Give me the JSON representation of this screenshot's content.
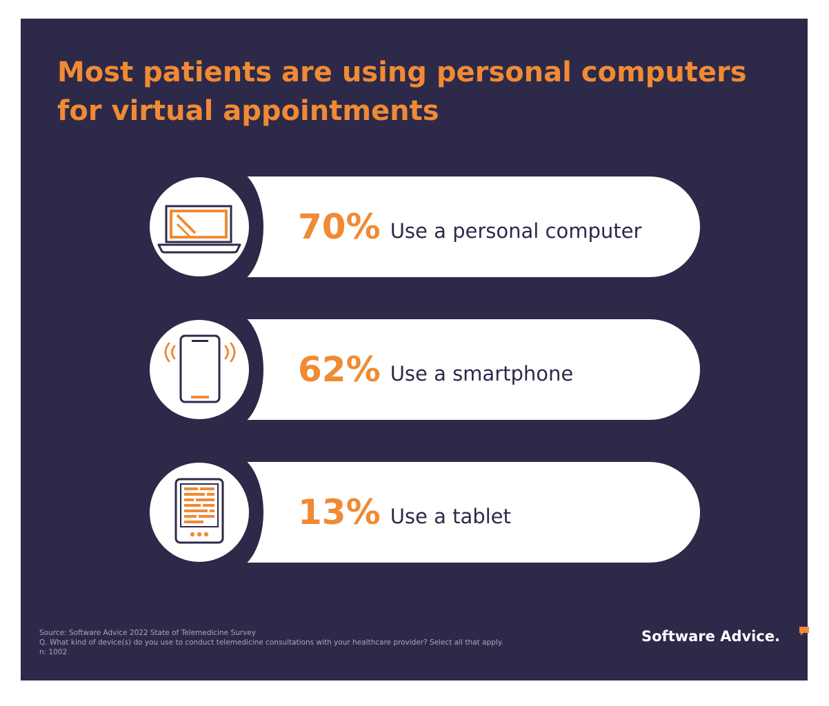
{
  "title_line1": "Most patients are using personal computers",
  "title_line2": "for virtual appointments",
  "chart_data": {
    "type": "bar",
    "title": "Most patients are using personal computers for virtual appointments",
    "categories": [
      "Use a personal computer",
      "Use a smartphone",
      "Use a tablet"
    ],
    "values": [
      70,
      62,
      13
    ],
    "value_labels": [
      "70%",
      "62%",
      "13%"
    ],
    "icons": [
      "laptop-icon",
      "smartphone-icon",
      "tablet-icon"
    ]
  },
  "source": {
    "line1": "Source: Software Advice 2022 State of Telemedicine Survey",
    "line2": "Q. What kind of device(s) do you use to conduct telemedicine consultations with your healthcare provider? Select all that apply.",
    "line3": "n: 1002"
  },
  "brand": {
    "name": "Software Advice."
  },
  "colors": {
    "background": "#2d2949",
    "accent": "#f08a34",
    "card": "#ffffff"
  }
}
